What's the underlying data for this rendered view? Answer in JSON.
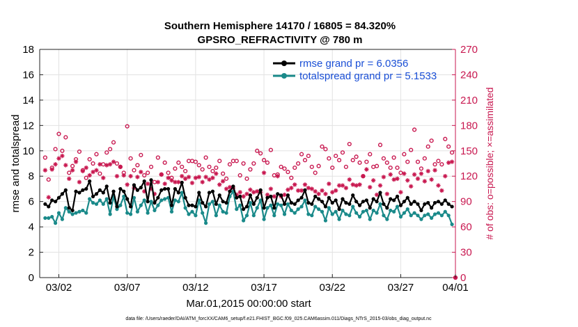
{
  "chart_data": {
    "type": "line",
    "title": "Southern Hemisphere 14170 / 16805 = 84.320%",
    "subtitle": "GPSRO_REFRACTIVITY @ 780 m",
    "xlabel": "Mar.01,2015 00:00:00 start",
    "ylabel": "rmse and totalspread",
    "y2label": "# of obs: o=possible; ×=assimilated",
    "footnote": "data file: /Users/raeder/DAI/ATM_forcXX/CAM6_setup/f.e21.FHIST_BGC.f09_025.CAM6assim.011/Diags_NTrS_2015-03/obs_diag_output.nc",
    "xlim": [
      0.6,
      31.0
    ],
    "ylim": [
      0,
      18
    ],
    "y2lim": [
      0,
      270
    ],
    "yticks": [
      "0",
      "2",
      "4",
      "6",
      "8",
      "10",
      "12",
      "14",
      "16",
      "18"
    ],
    "y2ticks": [
      "0",
      "30",
      "60",
      "90",
      "120",
      "150",
      "180",
      "210",
      "240",
      "270"
    ],
    "xticks": [
      {
        "label": "03/02",
        "x": 2
      },
      {
        "label": "03/07",
        "x": 7
      },
      {
        "label": "03/12",
        "x": 12
      },
      {
        "label": "03/17",
        "x": 17
      },
      {
        "label": "03/22",
        "x": 22
      },
      {
        "label": "03/27",
        "x": 27
      },
      {
        "label": "04/01",
        "x": 32
      }
    ],
    "legend": {
      "location": "top-right",
      "entries": [
        "rmse grand pr = 6.0356",
        "totalspread grand pr = 5.1533"
      ]
    },
    "x": [
      1.0,
      1.25,
      1.5,
      1.75,
      2.0,
      2.25,
      2.5,
      2.75,
      3.0,
      3.25,
      3.5,
      3.75,
      4.0,
      4.25,
      4.5,
      4.75,
      5.0,
      5.25,
      5.5,
      5.75,
      6.0,
      6.25,
      6.5,
      6.75,
      7.0,
      7.25,
      7.5,
      7.75,
      8.0,
      8.25,
      8.5,
      8.75,
      9.0,
      9.25,
      9.5,
      9.75,
      10.0,
      10.25,
      10.5,
      10.75,
      11.0,
      11.25,
      11.5,
      11.75,
      12.0,
      12.25,
      12.5,
      12.75,
      13.0,
      13.25,
      13.5,
      13.75,
      14.0,
      14.25,
      14.5,
      14.75,
      15.0,
      15.25,
      15.5,
      15.75,
      16.0,
      16.25,
      16.5,
      16.75,
      17.0,
      17.25,
      17.5,
      17.75,
      18.0,
      18.25,
      18.5,
      18.75,
      19.0,
      19.25,
      19.5,
      19.75,
      20.0,
      20.25,
      20.5,
      20.75,
      21.0,
      21.25,
      21.5,
      21.75,
      22.0,
      22.25,
      22.5,
      22.75,
      23.0,
      23.25,
      23.5,
      23.75,
      24.0,
      24.25,
      24.5,
      24.75,
      25.0,
      25.25,
      25.5,
      25.75,
      26.0,
      26.25,
      26.5,
      26.75,
      27.0,
      27.25,
      27.5,
      27.75,
      28.0,
      28.25,
      28.5,
      28.75,
      29.0,
      29.25,
      29.5,
      29.75,
      30.0,
      30.25,
      30.5,
      30.75
    ],
    "series": [
      {
        "name": "rmse",
        "color": "#000000",
        "values": [
          5.8,
          5.6,
          6.1,
          6.0,
          6.3,
          6.6,
          6.9,
          5.5,
          5.3,
          6.8,
          6.7,
          6.9,
          7.0,
          7.6,
          6.4,
          6.6,
          6.9,
          6.7,
          7.2,
          5.9,
          6.8,
          5.6,
          7.0,
          6.8,
          6.2,
          5.6,
          7.3,
          6.9,
          7.1,
          7.6,
          6.0,
          7.7,
          5.9,
          6.3,
          6.9,
          7.0,
          7.0,
          5.7,
          7.0,
          6.7,
          7.5,
          6.3,
          5.7,
          5.7,
          5.6,
          6.7,
          5.9,
          5.6,
          6.7,
          6.8,
          5.8,
          6.5,
          6.0,
          5.9,
          6.8,
          7.2,
          6.3,
          6.4,
          5.4,
          5.6,
          6.5,
          5.8,
          6.3,
          6.9,
          5.5,
          6.3,
          6.4,
          5.5,
          6.6,
          6.5,
          5.8,
          6.5,
          5.9,
          5.8,
          6.1,
          6.3,
          6.9,
          5.9,
          5.8,
          6.4,
          6.2,
          6.0,
          5.6,
          6.3,
          5.9,
          6.1,
          5.4,
          6.2,
          5.9,
          5.8,
          6.5,
          6.0,
          5.7,
          6.0,
          6.1,
          5.5,
          6.2,
          6.0,
          6.7,
          5.8,
          5.5,
          6.2,
          6.1,
          6.4,
          5.7,
          6.0,
          6.3,
          5.8,
          6.0,
          5.8,
          5.3,
          5.8,
          5.9,
          5.5,
          5.9,
          6.0,
          5.8,
          6.1,
          5.8,
          5.6
        ]
      },
      {
        "name": "totalspread",
        "color": "#1a8a8a",
        "values": [
          4.7,
          4.7,
          4.8,
          4.3,
          5.1,
          4.6,
          5.5,
          5.2,
          5.0,
          5.1,
          5.2,
          5.3,
          5.1,
          6.2,
          5.9,
          5.8,
          6.1,
          5.8,
          6.2,
          5.0,
          6.4,
          5.4,
          5.7,
          6.4,
          5.1,
          5.0,
          6.3,
          5.2,
          5.7,
          6.1,
          5.1,
          6.0,
          5.3,
          5.7,
          6.1,
          6.2,
          6.3,
          5.2,
          6.1,
          6.0,
          6.7,
          5.5,
          5.0,
          5.2,
          4.9,
          6.1,
          5.1,
          4.3,
          5.8,
          6.0,
          4.9,
          5.7,
          5.2,
          5.1,
          6.4,
          6.8,
          5.4,
          5.7,
          4.5,
          4.9,
          5.9,
          4.9,
          5.5,
          6.1,
          4.6,
          5.5,
          5.7,
          4.9,
          5.8,
          5.7,
          5.0,
          5.8,
          5.3,
          5.1,
          5.4,
          5.6,
          6.1,
          5.0,
          4.9,
          5.6,
          5.4,
          5.2,
          4.5,
          5.5,
          5.0,
          5.2,
          4.6,
          5.3,
          5.0,
          4.9,
          5.6,
          5.1,
          4.8,
          5.2,
          5.3,
          4.6,
          5.3,
          5.1,
          5.8,
          4.9,
          4.6,
          5.3,
          5.2,
          5.6,
          4.8,
          5.1,
          5.4,
          4.9,
          5.1,
          4.9,
          4.6,
          4.9,
          5.0,
          4.7,
          5.0,
          5.1,
          4.9,
          5.2,
          4.9,
          4.2
        ]
      },
      {
        "name": "obs possible",
        "color": "#c8174f",
        "marker": "circle",
        "axis": "right",
        "values": [
          142,
          116,
          130,
          152,
          170,
          150,
          166,
          124,
          132,
          140,
          149,
          127,
          118,
          140,
          135,
          146,
          123,
          134,
          148,
          152,
          160,
          135,
          131,
          124,
          179,
          141,
          127,
          133,
          145,
          121,
          124,
          131,
          113,
          142,
          122,
          136,
          124,
          118,
          129,
          136,
          131,
          126,
          138,
          138,
          137,
          133,
          128,
          142,
          131,
          126,
          130,
          138,
          123,
          117,
          134,
          138,
          138,
          121,
          135,
          117,
          128,
          135,
          150,
          147,
          139,
          136,
          151,
          121,
          122,
          131,
          129,
          125,
          118,
          130,
          135,
          146,
          139,
          144,
          131,
          124,
          132,
          155,
          152,
          141,
          130,
          144,
          139,
          148,
          131,
          158,
          139,
          143,
          136,
          120,
          137,
          146,
          131,
          132,
          157,
          141,
          136,
          130,
          142,
          130,
          124,
          146,
          137,
          151,
          175,
          137,
          129,
          141,
          155,
          162,
          134,
          138,
          134,
          164,
          155,
          148
        ]
      },
      {
        "name": "obs assimilated",
        "color": "#c8174f",
        "marker": "x",
        "axis": "right",
        "values": [
          127,
          95,
          128,
          134,
          141,
          144,
          133,
          117,
          127,
          137,
          113,
          126,
          130,
          121,
          125,
          127,
          134,
          118,
          133,
          134,
          137,
          120,
          131,
          121,
          110,
          120,
          106,
          119,
          125,
          102,
          111,
          105,
          99,
          113,
          122,
          111,
          118,
          115,
          113,
          113,
          120,
          117,
          119,
          112,
          118,
          119,
          113,
          119,
          116,
          118,
          123,
          110,
          114,
          105,
          107,
          106,
          98,
          101,
          96,
          99,
          104,
          101,
          102,
          101,
          124,
          98,
          105,
          96,
          120,
          96,
          98,
          104,
          106,
          110,
          103,
          103,
          110,
          106,
          105,
          102,
          99,
          103,
          99,
          111,
          101,
          103,
          109,
          109,
          106,
          116,
          110,
          109,
          110,
          120,
          128,
          107,
          115,
          98,
          109,
          119,
          99,
          122,
          116,
          117,
          101,
          123,
          115,
          108,
          122,
          117,
          123,
          114,
          126,
          116,
          127,
          109,
          103,
          120,
          136,
          137
        ]
      }
    ]
  }
}
